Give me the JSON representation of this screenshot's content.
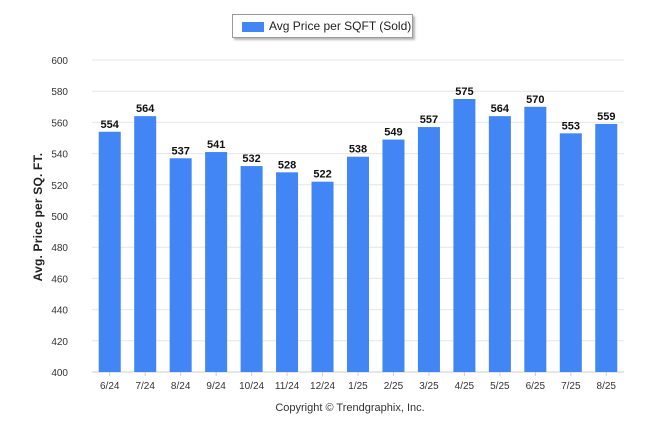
{
  "legend": {
    "label": "Avg Price per SQFT (Sold)"
  },
  "copyright": "Copyright © Trendgraphix, Inc.",
  "colors": {
    "bar": "#4285f4",
    "grid": "#e6e6e6",
    "axis": "#cccccc",
    "text": "#222222"
  },
  "chart_data": {
    "type": "bar",
    "title": "",
    "xlabel": "",
    "ylabel": "Avg. Price per SQ. FT.",
    "categories": [
      "6/24",
      "7/24",
      "8/24",
      "9/24",
      "10/24",
      "11/24",
      "12/24",
      "1/25",
      "2/25",
      "3/25",
      "4/25",
      "5/25",
      "6/25",
      "7/25",
      "8/25"
    ],
    "series": [
      {
        "name": "Avg Price per SQFT (Sold)",
        "values": [
          554,
          564,
          537,
          541,
          532,
          528,
          522,
          538,
          549,
          557,
          575,
          564,
          570,
          553,
          559
        ]
      }
    ],
    "ylim": [
      400,
      600
    ],
    "yticks": [
      400,
      420,
      440,
      460,
      480,
      500,
      520,
      540,
      560,
      580,
      600
    ],
    "grid": true,
    "legend_position": "top-center"
  }
}
